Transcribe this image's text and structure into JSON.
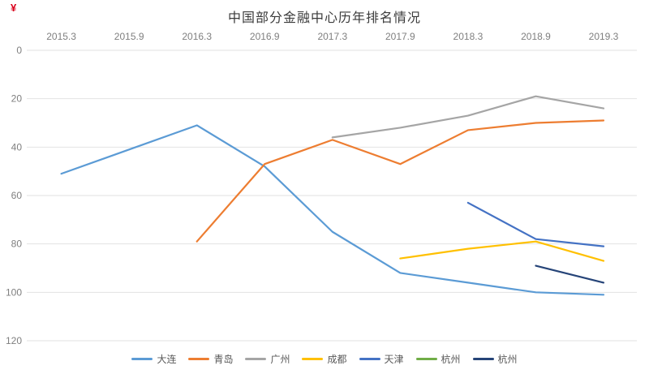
{
  "page": {
    "corner_mark": "¥",
    "corner_mark_color": "#d9001b",
    "background_color": "#ffffff"
  },
  "chart_data": {
    "type": "line",
    "title": "中国部分金融中心历年排名情况",
    "title_color": "#3b3b3b",
    "categories": [
      "2015.3",
      "2015.9",
      "2016.3",
      "2016.9",
      "2017.3",
      "2017.9",
      "2018.3",
      "2018.9",
      "2019.3"
    ],
    "series": [
      {
        "name": "大连",
        "color": "#5B9BD5",
        "values": [
          51,
          41,
          31,
          48,
          75,
          92,
          96,
          100,
          101
        ]
      },
      {
        "name": "青岛",
        "color": "#ED7D31",
        "values": [
          null,
          null,
          79,
          47,
          37,
          47,
          33,
          30,
          29
        ]
      },
      {
        "name": "广州",
        "color": "#A5A5A5",
        "values": [
          null,
          null,
          null,
          null,
          36,
          32,
          27,
          19,
          24
        ]
      },
      {
        "name": "成都",
        "color": "#FFC000",
        "values": [
          null,
          null,
          null,
          null,
          null,
          86,
          82,
          79,
          87
        ]
      },
      {
        "name": "天津",
        "color": "#4472C4",
        "values": [
          null,
          null,
          null,
          null,
          null,
          null,
          63,
          78,
          81
        ]
      },
      {
        "name": "杭州",
        "color": "#70AD47",
        "values": [
          null,
          null,
          null,
          null,
          null,
          null,
          null,
          null,
          null
        ]
      },
      {
        "name": "杭州",
        "color": "#264478",
        "values": [
          null,
          null,
          null,
          null,
          null,
          null,
          null,
          89,
          96
        ]
      }
    ],
    "y_axis": {
      "ticks": [
        0,
        20,
        40,
        60,
        80,
        100,
        120
      ],
      "range": [
        0,
        120
      ],
      "inverted": true,
      "meaning": "rank (smaller is better, axis increases downward)"
    },
    "x_axis_position": "top",
    "legend_position": "bottom",
    "grid": true,
    "gridline_color": "#e2e2e2",
    "axis_label_color": "#7f7f7f",
    "legend_text_color": "#595959",
    "xlabel": "",
    "ylabel": ""
  }
}
